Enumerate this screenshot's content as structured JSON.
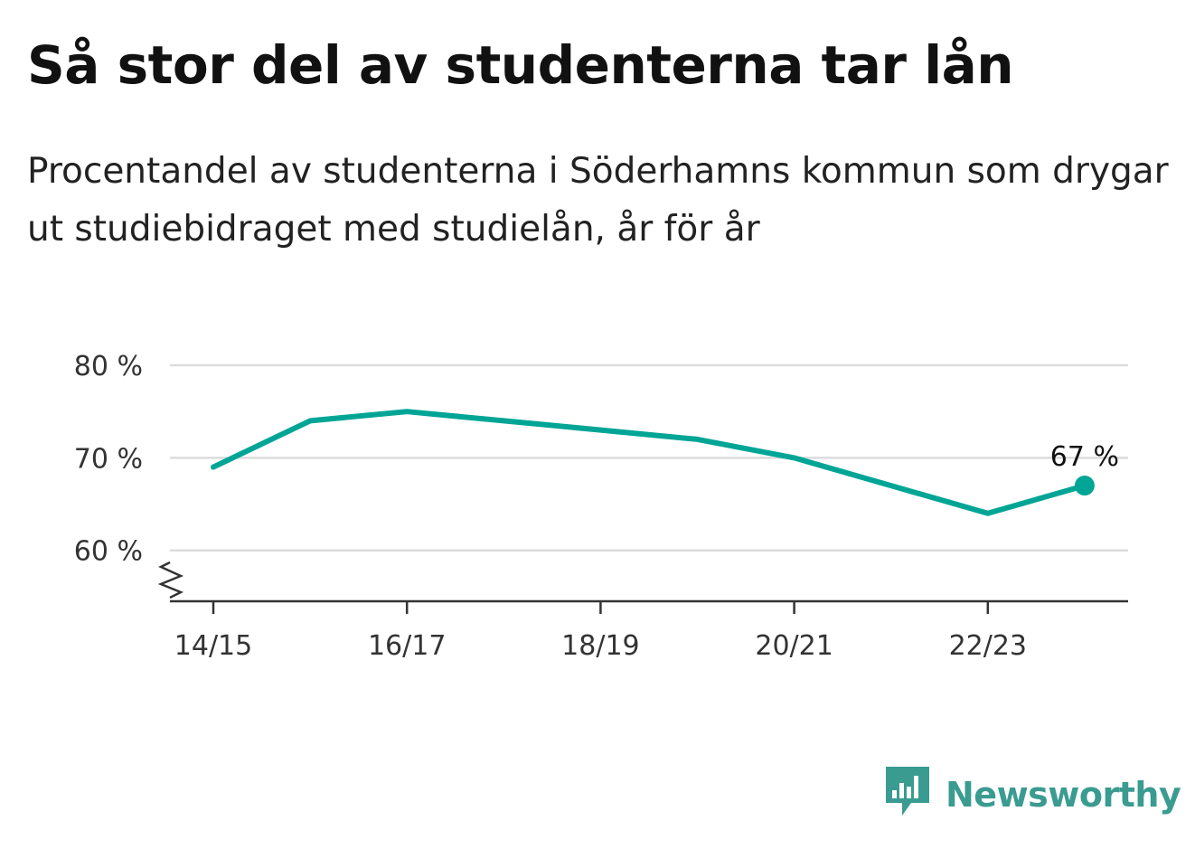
{
  "title": "Så stor del av studenterna tar lån",
  "subtitle": "Procentandel av studenterna i Söderhamns kommun som drygar ut studiebidraget med studielån, år för år",
  "colors": {
    "line": "#00a596",
    "grid": "#dcdcdc",
    "axis": "#333333",
    "brand": "#3a9b91"
  },
  "brand": {
    "name": "Newsworthy",
    "logo_icon": "newsworthy-bar-chart-bubble-icon"
  },
  "chart_data": {
    "type": "line",
    "x": [
      "14/15",
      "15/16",
      "16/17",
      "17/18",
      "18/19",
      "19/20",
      "20/21",
      "21/22",
      "22/23",
      "23/24"
    ],
    "x_tick_labels": [
      "14/15",
      "16/17",
      "18/19",
      "20/21",
      "22/23"
    ],
    "series": [
      {
        "values": [
          69,
          74,
          75,
          74,
          73,
          72,
          70,
          67,
          64,
          67
        ]
      }
    ],
    "y_ticks": [
      60,
      70,
      80
    ],
    "y_tick_labels": [
      "60 %",
      "70 %",
      "80 %"
    ],
    "ylim": [
      54.5,
      80
    ],
    "y_axis_break": true,
    "grid": true,
    "end_label": "67 %",
    "end_marker": true
  }
}
